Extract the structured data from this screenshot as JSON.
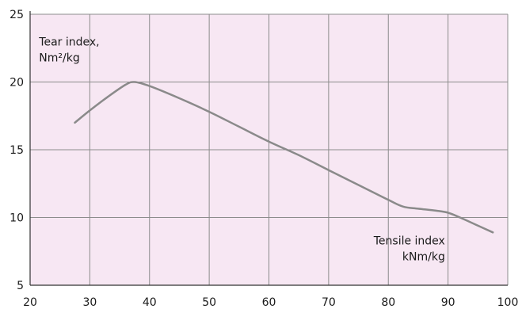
{
  "chart_data": {
    "type": "line",
    "title": "",
    "xlabel": "",
    "ylabel": "",
    "xlim": [
      20,
      100
    ],
    "ylim": [
      5,
      25
    ],
    "x_ticks": [
      20,
      30,
      40,
      50,
      60,
      70,
      80,
      90,
      100
    ],
    "y_ticks": [
      5,
      10,
      15,
      20,
      25
    ],
    "grid": true,
    "colors": {
      "plot_bg": "#f7e7f3",
      "grid": "#8c8c8c",
      "line": "#8a8a8a",
      "axis": "#333333"
    },
    "series": [
      {
        "x": [
          27.5,
          30,
          33,
          36,
          37.5,
          40,
          45,
          50,
          55,
          60,
          65,
          70,
          75,
          80,
          82.5,
          85,
          88,
          90,
          92,
          95,
          97.5
        ],
        "y": [
          17.0,
          17.9,
          18.9,
          19.8,
          20.0,
          19.7,
          18.8,
          17.8,
          16.7,
          15.6,
          14.6,
          13.5,
          12.4,
          11.3,
          10.8,
          10.65,
          10.5,
          10.35,
          10.0,
          9.4,
          8.9
        ]
      }
    ],
    "annotations": [
      {
        "lines": [
          "Tear index,",
          "Nm²/kg"
        ],
        "x": 21.5,
        "y": 22.7,
        "anchor": "start"
      },
      {
        "lines": [
          "Tensile index",
          "kNm/kg"
        ],
        "x": 89.5,
        "y": 8.0,
        "anchor": "end"
      }
    ]
  }
}
